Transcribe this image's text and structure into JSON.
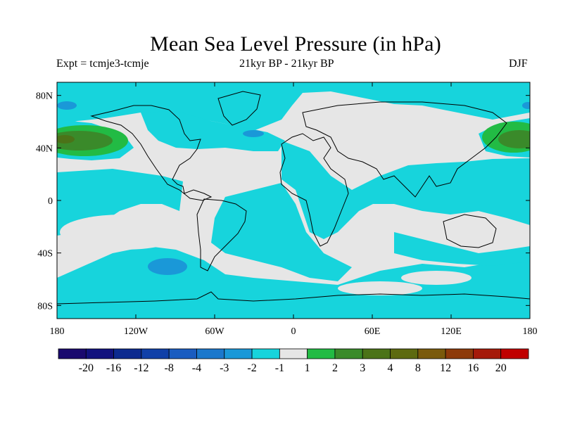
{
  "title": "Mean Sea Level Pressure (in hPa)",
  "expt": "Expt = tcmje3-tcmje",
  "period": "21kyr BP - 21kyr BP",
  "season": "DJF",
  "axes": {
    "lat_ticks": [
      {
        "label": "80N",
        "value": 80
      },
      {
        "label": "40N",
        "value": 40
      },
      {
        "label": "0",
        "value": 0
      },
      {
        "label": "40S",
        "value": -40
      },
      {
        "label": "80S",
        "value": -80
      }
    ],
    "lon_ticks": [
      {
        "label": "180",
        "value": -180
      },
      {
        "label": "120W",
        "value": -120
      },
      {
        "label": "60W",
        "value": -60
      },
      {
        "label": "0",
        "value": 0
      },
      {
        "label": "60E",
        "value": 60
      },
      {
        "label": "120E",
        "value": 120
      },
      {
        "label": "180",
        "value": 180
      }
    ],
    "lon_range": [
      -180,
      180
    ],
    "lat_range": [
      -90,
      90
    ]
  },
  "colorbar": {
    "colors": [
      "#1a0a6e",
      "#12127e",
      "#0c2a8f",
      "#1040a8",
      "#1a5cc0",
      "#1b78cc",
      "#1a98d8",
      "#17d4dc",
      "#e6e6e6",
      "#22bb44",
      "#3a8a2a",
      "#4b7318",
      "#5d6a10",
      "#7a5a0c",
      "#8d3a0a",
      "#a51a0a",
      "#c00000"
    ],
    "labels": [
      "-20",
      "-16",
      "-12",
      "-8",
      "-4",
      "-3",
      "-2",
      "-1",
      "1",
      "2",
      "3",
      "4",
      "8",
      "12",
      "16",
      "20"
    ]
  },
  "fields": {
    "neutral": "#e6e6e6",
    "neg1": "#17d4dc",
    "neg2": "#1a98d8",
    "neg3": "#1b78cc",
    "pos1": "#22bb44",
    "pos2": "#3a8a2a",
    "pos3": "#4b7318"
  }
}
